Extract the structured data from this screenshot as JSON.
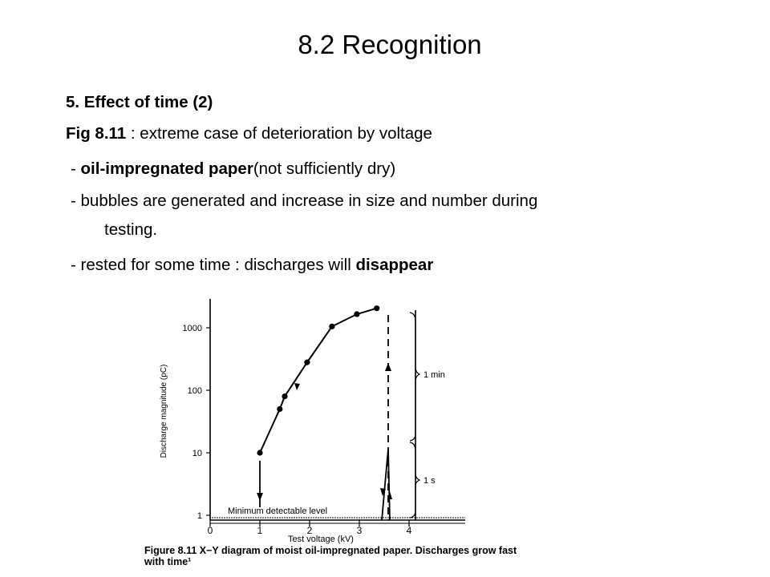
{
  "title": "8.2 Recognition",
  "heading": "5. Effect of time (2)",
  "lines": [
    {
      "bold": "Fig 8.11",
      "text": " : extreme case of deterioration by voltage"
    },
    {
      "prefix": " - ",
      "bold": "oil-impregnated paper",
      "text": "(not sufficiently dry)"
    },
    {
      "text": " - bubbles are generated and increase in size and number during",
      "cont": "testing."
    },
    {
      "prefix": " - rested for some time : discharges will ",
      "bold": "disappear"
    }
  ],
  "figure": {
    "ylabel": "Discharge magnitude (pC)",
    "xlabel": "Test voltage (kV)",
    "minimum_label": "Minimum detectable level",
    "bracket_labels": [
      "1 min",
      "1 s"
    ],
    "caption_bold": "Figure 8.11",
    "caption_text": " X−Y diagram of moist oil-impregnated paper. Discharges grow fast",
    "caption_cont": "with time¹"
  },
  "chart_data": {
    "type": "line",
    "xlabel": "Test voltage (kV)",
    "ylabel": "Discharge magnitude (pC)",
    "y_scale": "log",
    "xlim": [
      0,
      5
    ],
    "ylim": [
      1,
      2000
    ],
    "x_ticks": [
      "0",
      "1",
      "2",
      "3",
      "4"
    ],
    "y_ticks": [
      "1",
      "10",
      "100",
      "1000"
    ],
    "series": [
      {
        "x": [
          1.0,
          1.4,
          1.5,
          1.95,
          2.45,
          2.95,
          3.35
        ],
        "y": [
          10,
          50,
          80,
          280,
          1050,
          1650,
          2050
        ]
      }
    ]
  }
}
